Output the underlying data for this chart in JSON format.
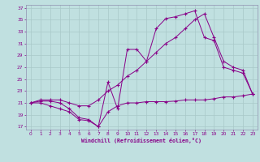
{
  "xlabel": "Windchill (Refroidissement éolien,°C)",
  "xlim": [
    -0.5,
    23.5
  ],
  "ylim": [
    16.5,
    37.5
  ],
  "yticks": [
    17,
    19,
    21,
    23,
    25,
    27,
    29,
    31,
    33,
    35,
    37
  ],
  "xticks": [
    0,
    1,
    2,
    3,
    4,
    5,
    6,
    7,
    8,
    9,
    10,
    11,
    12,
    13,
    14,
    15,
    16,
    17,
    18,
    19,
    20,
    21,
    22,
    23
  ],
  "bg_color": "#c0e0e0",
  "line_color": "#880088",
  "grid_color": "#a8c8c8",
  "spine_color": "#9090b0",
  "line1_x": [
    0,
    1,
    2,
    3,
    4,
    5,
    6,
    7,
    8,
    9,
    10,
    11,
    12,
    13,
    14,
    15,
    16,
    17,
    18,
    19,
    20,
    21,
    22,
    23
  ],
  "line1_y": [
    21,
    21.3,
    21.3,
    21.0,
    20.0,
    18.5,
    18.2,
    17.0,
    19.5,
    20.5,
    21.0,
    21.0,
    21.2,
    21.2,
    21.2,
    21.3,
    21.5,
    21.5,
    21.5,
    21.7,
    22.0,
    22.0,
    22.2,
    22.5
  ],
  "line2_x": [
    0,
    1,
    2,
    3,
    4,
    5,
    6,
    7,
    8,
    9,
    10,
    11,
    12,
    13,
    14,
    15,
    16,
    17,
    18,
    19,
    20,
    21,
    22,
    23
  ],
  "line2_y": [
    21,
    21,
    20.5,
    20,
    19.5,
    18.2,
    18.0,
    17.0,
    24.5,
    20.0,
    30,
    30,
    28,
    33.5,
    35.2,
    35.5,
    36,
    36.5,
    32,
    31.5,
    27,
    26.5,
    26,
    22.5
  ],
  "line3_x": [
    0,
    1,
    2,
    3,
    4,
    5,
    6,
    7,
    8,
    9,
    10,
    11,
    12,
    13,
    14,
    15,
    16,
    17,
    18,
    19,
    20,
    21,
    22,
    23
  ],
  "line3_y": [
    21,
    21.5,
    21.5,
    21.5,
    21.0,
    20.5,
    20.5,
    21.5,
    23.0,
    24.0,
    25.5,
    26.5,
    28.0,
    29.5,
    31.0,
    32.0,
    33.5,
    35.0,
    36.0,
    32.0,
    28.0,
    27.0,
    26.5,
    22.5
  ]
}
